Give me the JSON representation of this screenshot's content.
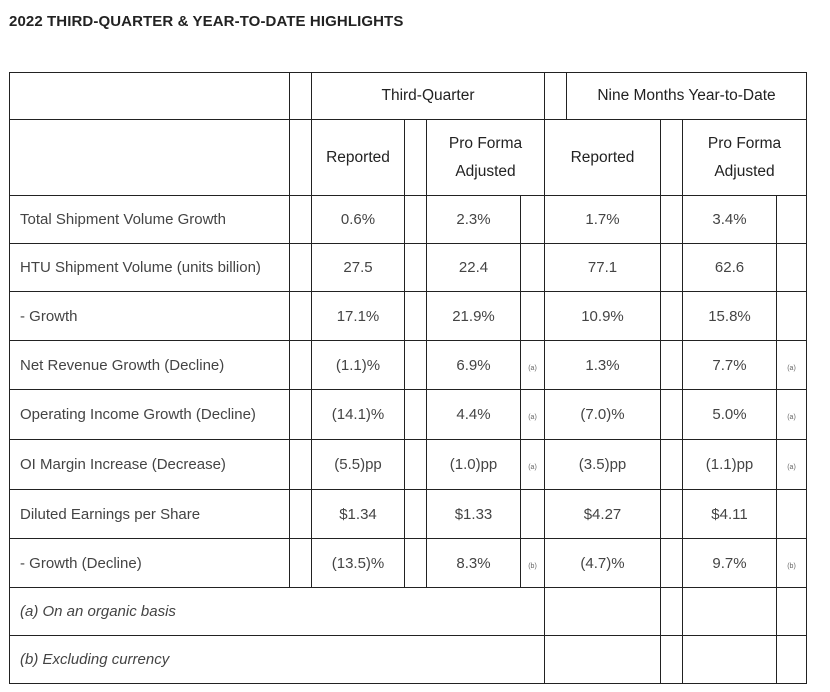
{
  "title": "2022 THIRD-QUARTER & YEAR-TO-DATE HIGHLIGHTS",
  "headers": {
    "third_quarter": "Third-Quarter",
    "nine_months": "Nine Months Year-to-Date",
    "reported": "Reported",
    "pro_forma_line1": "Pro Forma",
    "pro_forma_line2": "Adjusted"
  },
  "rows": [
    {
      "label": "Total Shipment Volume Growth",
      "q_rep": "0.6%",
      "q_pf": "2.3%",
      "q_mark": "",
      "y_rep": "1.7%",
      "y_pf": "3.4%",
      "y_mark": ""
    },
    {
      "label": "HTU Shipment Volume (units billion)",
      "q_rep": "27.5",
      "q_pf": "22.4",
      "q_mark": "",
      "y_rep": "77.1",
      "y_pf": "62.6",
      "y_mark": ""
    },
    {
      "label": "- Growth",
      "q_rep": "17.1%",
      "q_pf": "21.9%",
      "q_mark": "",
      "y_rep": "10.9%",
      "y_pf": "15.8%",
      "y_mark": ""
    },
    {
      "label": "Net Revenue Growth (Decline)",
      "q_rep": "(1.1)%",
      "q_pf": "6.9%",
      "q_mark": "(a)",
      "y_rep": "1.3%",
      "y_pf": "7.7%",
      "y_mark": "(a)"
    },
    {
      "label": "Operating Income Growth (Decline)",
      "q_rep": "(14.1)%",
      "q_pf": "4.4%",
      "q_mark": "(a)",
      "y_rep": "(7.0)%",
      "y_pf": "5.0%",
      "y_mark": "(a)"
    },
    {
      "label": "OI Margin Increase (Decrease)",
      "q_rep": "(5.5)pp",
      "q_pf": "(1.0)pp",
      "q_mark": "(a)",
      "y_rep": "(3.5)pp",
      "y_pf": "(1.1)pp",
      "y_mark": "(a)"
    },
    {
      "label": "Diluted Earnings per Share",
      "q_rep": "$1.34",
      "q_pf": "$1.33",
      "q_mark": "",
      "y_rep": "$4.27",
      "y_pf": "$4.11",
      "y_mark": ""
    },
    {
      "label": "- Growth (Decline)",
      "q_rep": "(13.5)%",
      "q_pf": "8.3%",
      "q_mark": "(b)",
      "y_rep": "(4.7)%",
      "y_pf": "9.7%",
      "y_mark": "(b)"
    }
  ],
  "notes": [
    "(a) On an organic basis",
    "(b) Excluding currency"
  ]
}
